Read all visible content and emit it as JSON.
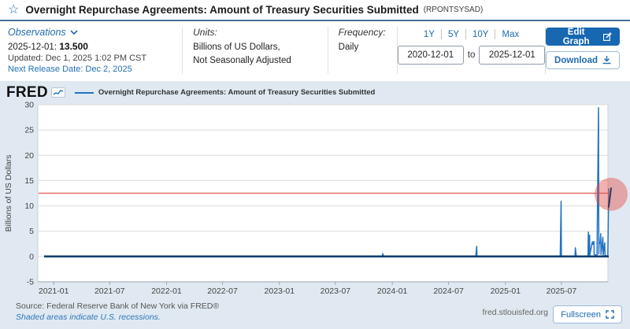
{
  "header": {
    "title": "Overnight Repurchase Agreements: Amount of Treasury Securities Submitted",
    "series_id": "(RPONTSYSAD)",
    "star_icon": "☆"
  },
  "meta": {
    "observations": {
      "label": "Observations",
      "latest_date": "2025-12-01:",
      "latest_value": "13.500",
      "updated": "Updated: Dec 1, 2025 1:02 PM CST",
      "next_release": "Next Release Date: Dec 2, 2025"
    },
    "units": {
      "label": "Units:",
      "line1": "Billions of US Dollars,",
      "line2": "Not Seasonally Adjusted"
    },
    "frequency": {
      "label": "Frequency:",
      "value": "Daily"
    },
    "range": {
      "buttons": [
        "1Y",
        "5Y",
        "10Y",
        "Max"
      ],
      "start_value": "2020-12-01",
      "to_label": "to",
      "end_value": "2025-12-01"
    },
    "actions": {
      "edit_label": "Edit Graph",
      "download_label": "Download"
    }
  },
  "chart_header": {
    "logo": "FRED",
    "legend": "Overnight Repurchase Agreements: Amount of Treasury Securities Submitted"
  },
  "chart_data": {
    "type": "line",
    "title": "Overnight Repurchase Agreements: Amount of Treasury Securities Submitted",
    "ylabel": "Billions of US Dollars",
    "ylim": [
      -5,
      30
    ],
    "yticks": [
      30,
      25,
      20,
      15,
      10,
      5,
      0,
      -5
    ],
    "x_range": [
      "2020-12-01",
      "2025-12-01"
    ],
    "xticks": [
      "2021-01",
      "2021-07",
      "2022-01",
      "2022-07",
      "2023-01",
      "2023-07",
      "2024-01",
      "2024-07",
      "2025-01",
      "2025-07"
    ],
    "grid": true,
    "legend_position": "top",
    "series": [
      {
        "name": "Overnight Repurchase Agreements: Amount of Treasury Securities Submitted",
        "color": "#2272c3",
        "points": [
          [
            "2020-12-01",
            0.0
          ],
          [
            "2021-03-01",
            0.0
          ],
          [
            "2021-06-01",
            0.05
          ],
          [
            "2021-09-01",
            0.0
          ],
          [
            "2021-12-01",
            0.05
          ],
          [
            "2022-03-01",
            0.0
          ],
          [
            "2022-06-30",
            0.05
          ],
          [
            "2022-09-30",
            0.1
          ],
          [
            "2022-12-30",
            0.05
          ],
          [
            "2023-03-31",
            0.1
          ],
          [
            "2023-06-30",
            0.05
          ],
          [
            "2023-09-29",
            0.1
          ],
          [
            "2023-11-30",
            0.05
          ],
          [
            "2023-12-01",
            0.55
          ],
          [
            "2023-12-04",
            0.05
          ],
          [
            "2024-03-29",
            0.05
          ],
          [
            "2024-06-28",
            0.1
          ],
          [
            "2024-09-27",
            0.05
          ],
          [
            "2024-09-30",
            2.0
          ],
          [
            "2024-10-01",
            0.05
          ],
          [
            "2024-12-31",
            0.1
          ],
          [
            "2025-03-31",
            0.05
          ],
          [
            "2025-06-27",
            0.1
          ],
          [
            "2025-06-30",
            10.9
          ],
          [
            "2025-07-01",
            0.1
          ],
          [
            "2025-08-14",
            0.05
          ],
          [
            "2025-08-15",
            1.7
          ],
          [
            "2025-08-18",
            0.05
          ],
          [
            "2025-09-25",
            0.1
          ],
          [
            "2025-09-26",
            4.8
          ],
          [
            "2025-09-29",
            0.2
          ],
          [
            "2025-09-30",
            4.2
          ],
          [
            "2025-10-01",
            0.3
          ],
          [
            "2025-10-08",
            2.6
          ],
          [
            "2025-10-09",
            2.9
          ],
          [
            "2025-10-10",
            2.4
          ],
          [
            "2025-10-14",
            3.0
          ],
          [
            "2025-10-15",
            0.4
          ],
          [
            "2025-10-24",
            0.2
          ],
          [
            "2025-10-29",
            29.4
          ],
          [
            "2025-10-30",
            0.5
          ],
          [
            "2025-10-31",
            2.8
          ],
          [
            "2025-11-03",
            2.6
          ],
          [
            "2025-11-05",
            4.5
          ],
          [
            "2025-11-06",
            0.4
          ],
          [
            "2025-11-12",
            3.8
          ],
          [
            "2025-11-13",
            0.3
          ],
          [
            "2025-11-18",
            2.7
          ],
          [
            "2025-11-19",
            0.2
          ],
          [
            "2025-11-28",
            0.1
          ],
          [
            "2025-12-01",
            13.5
          ]
        ]
      }
    ],
    "annotations": {
      "hline": {
        "value": 12.5,
        "color": "#e0605c"
      },
      "highlight_circle": {
        "date": "2025-12-01",
        "value": 12.3,
        "radius_px": 21,
        "color": "rgba(229,83,75,0.45)"
      },
      "end_mark": {
        "date": "2025-12-01",
        "value_top": 13.5,
        "value_bottom": 9.8,
        "color": "#343b55"
      }
    }
  },
  "footer": {
    "source": "Source: Federal Reserve Bank of New York via FRED®",
    "recessions": "Shaded areas indicate U.S. recessions.",
    "site": "fred.stlouisfed.org",
    "fullscreen_label": "Fullscreen"
  },
  "colors": {
    "accent_blue": "#1f6bb0",
    "button_blue": "#1767b1",
    "series_blue": "#2272c3",
    "baseline_navy": "#123f70",
    "red_line": "#e0605c",
    "chart_bg": "#e0e9f2",
    "grid": "#dcdcdc"
  }
}
